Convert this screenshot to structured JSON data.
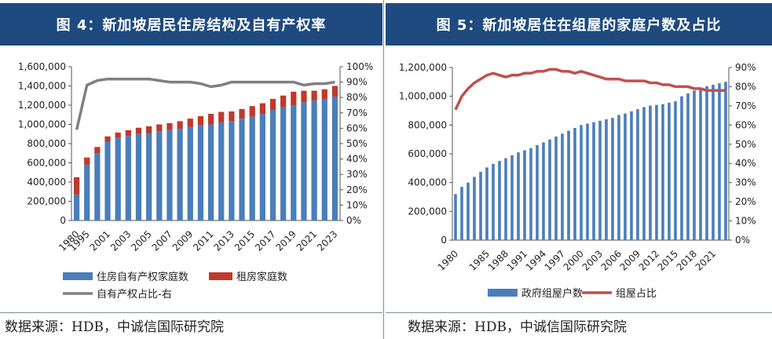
{
  "left": {
    "title": "图 4：新加坡居民住房结构及自有产权率",
    "source": "数据来源：HDB，中诚信国际研究院",
    "chart_data": {
      "type": "bar",
      "stacked": true,
      "categories": [
        "1980",
        "1995",
        "2000",
        "2001",
        "2002",
        "2003",
        "2004",
        "2005",
        "2006",
        "2007",
        "2008",
        "2009",
        "2010",
        "2011",
        "2012",
        "2013",
        "2014",
        "2015",
        "2016",
        "2017",
        "2018",
        "2019",
        "2020",
        "2021",
        "2022",
        "2023"
      ],
      "x_tick_labels": [
        "1980",
        "1995",
        "2001",
        "2003",
        "2005",
        "2007",
        "2009",
        "2011",
        "2013",
        "2015",
        "2017",
        "2019",
        "2021",
        "2023"
      ],
      "series": [
        {
          "name": "住房自有产权家庭数",
          "axis": "left",
          "color": "#4a7ebb",
          "values": [
            270000,
            580000,
            700000,
            820000,
            860000,
            880000,
            900000,
            910000,
            930000,
            940000,
            955000,
            975000,
            990000,
            1000000,
            1020000,
            1035000,
            1060000,
            1080000,
            1110000,
            1150000,
            1180000,
            1200000,
            1230000,
            1250000,
            1265000,
            1290000
          ]
        },
        {
          "name": "租房家庭数",
          "axis": "left",
          "color": "#c0392b",
          "values": [
            180000,
            75000,
            65000,
            55000,
            55000,
            60000,
            65000,
            70000,
            70000,
            72000,
            78000,
            85000,
            95000,
            110000,
            110000,
            100000,
            100000,
            110000,
            110000,
            115000,
            120000,
            140000,
            120000,
            100000,
            100000,
            110000
          ]
        },
        {
          "name": "自有产权占比-右",
          "axis": "right",
          "color": "#808080",
          "type": "line",
          "values": [
            59,
            88,
            91,
            92,
            92,
            92,
            92,
            92,
            91,
            90,
            90,
            90,
            89,
            87,
            88,
            90,
            90,
            90,
            90,
            90,
            90,
            90,
            88,
            89,
            89,
            90
          ]
        }
      ],
      "ylim_left": [
        0,
        1600000
      ],
      "yticks_left": [
        "0",
        "200,000",
        "400,000",
        "600,000",
        "800,000",
        "1,000,000",
        "1,200,000",
        "1,400,000",
        "1,600,000"
      ],
      "ylim_right": [
        0,
        100
      ],
      "yticks_right": [
        "0%",
        "10%",
        "20%",
        "30%",
        "40%",
        "50%",
        "60%",
        "70%",
        "80%",
        "90%",
        "100%"
      ],
      "legend": [
        "住房自有产权家庭数",
        "租房家庭数",
        "自有产权占比-右"
      ],
      "legend_position": "bottom"
    }
  },
  "right": {
    "title": "图 5：新加坡居住在组屋的家庭户数及占比",
    "source": "数据来源：HDB，中诚信国际研究院",
    "chart_data": {
      "type": "bar",
      "categories": [
        "1980",
        "1981",
        "1982",
        "1983",
        "1984",
        "1985",
        "1986",
        "1987",
        "1988",
        "1989",
        "1990",
        "1991",
        "1992",
        "1993",
        "1994",
        "1995",
        "1996",
        "1997",
        "1998",
        "1999",
        "2000",
        "2001",
        "2002",
        "2003",
        "2004",
        "2005",
        "2006",
        "2007",
        "2008",
        "2009",
        "2010",
        "2011",
        "2012",
        "2013",
        "2014",
        "2015",
        "2016",
        "2017",
        "2018",
        "2019",
        "2020",
        "2021",
        "2022",
        "2023"
      ],
      "x_tick_labels": [
        "1980",
        "1985",
        "1988",
        "1991",
        "1994",
        "1997",
        "2000",
        "2003",
        "2006",
        "2009",
        "2012",
        "2015",
        "2018",
        "2021"
      ],
      "series": [
        {
          "name": "政府组屋户数",
          "axis": "left",
          "color": "#4a7ebb",
          "values": [
            320000,
            370000,
            400000,
            440000,
            475000,
            505000,
            530000,
            550000,
            570000,
            590000,
            610000,
            625000,
            640000,
            660000,
            680000,
            700000,
            720000,
            740000,
            760000,
            780000,
            800000,
            810000,
            820000,
            830000,
            840000,
            850000,
            870000,
            880000,
            895000,
            910000,
            925000,
            935000,
            940000,
            945000,
            955000,
            965000,
            1000000,
            1020000,
            1040000,
            1060000,
            1070000,
            1080000,
            1090000,
            1100000
          ]
        },
        {
          "name": "组屋占比",
          "axis": "right",
          "color": "#c0504d",
          "type": "line",
          "values": [
            68,
            75,
            79,
            82,
            84,
            86,
            87,
            86,
            85,
            86,
            86,
            87,
            87,
            88,
            88,
            89,
            89,
            88,
            88,
            87,
            88,
            87,
            86,
            85,
            84,
            84,
            84,
            83,
            83,
            83,
            83,
            82,
            82,
            81,
            81,
            80,
            80,
            80,
            79,
            79,
            78,
            78,
            78,
            78
          ]
        }
      ],
      "ylim_left": [
        0,
        1200000
      ],
      "yticks_left": [
        "0",
        "200,000",
        "400,000",
        "600,000",
        "800,000",
        "1,000,000",
        "1,200,000"
      ],
      "ylim_right": [
        0,
        90
      ],
      "yticks_right": [
        "0%",
        "10%",
        "20%",
        "30%",
        "40%",
        "50%",
        "60%",
        "70%",
        "80%",
        "90%"
      ],
      "legend": [
        "政府组屋户数",
        "组屋占比"
      ],
      "legend_position": "bottom"
    }
  }
}
